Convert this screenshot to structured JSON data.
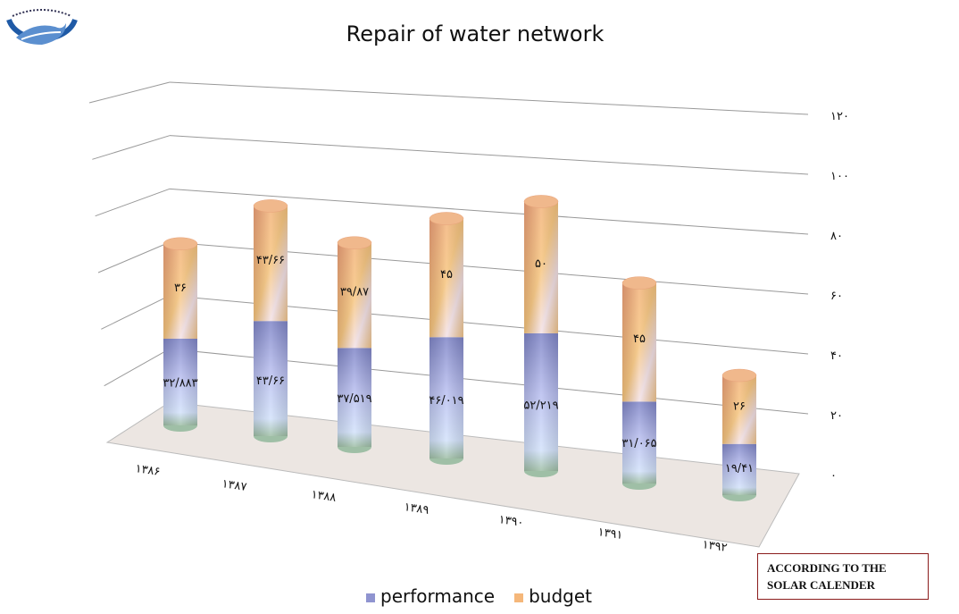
{
  "chart_data": {
    "type": "bar",
    "stacked": true,
    "style": "3d-cylinder",
    "title": "Repair of water network",
    "categories": [
      "۱۳۸۶",
      "۱۳۸۷",
      "۱۳۸۸",
      "۱۳۸۹",
      "۱۳۹۰",
      "۱۳۹۱",
      "۱۳۹۲"
    ],
    "series": [
      {
        "name": "performance",
        "color": "#8f94d0",
        "values": [
          32.883,
          43.66,
          37.519,
          46.019,
          52.219,
          31.065,
          19.41
        ],
        "labels": [
          "۳۲/۸۸۳",
          "۴۳/۶۶",
          "۳۷/۵۱۹",
          "۴۶/۰۱۹",
          "۵۲/۲۱۹",
          "۳۱/۰۶۵",
          "۱۹/۴۱"
        ]
      },
      {
        "name": "budget",
        "color": "#f5b77a",
        "values": [
          36,
          43.66,
          39.87,
          45,
          50,
          45,
          26
        ],
        "labels": [
          "۳۶",
          "۴۳/۶۶",
          "۳۹/۸۷",
          "۴۵",
          "۵۰",
          "۴۵",
          "۲۶"
        ]
      }
    ],
    "yticks": [
      "۰",
      "۲۰",
      "۴۰",
      "۶۰",
      "۸۰",
      "۱۰۰",
      "۱۲۰"
    ],
    "ytick_values": [
      0,
      20,
      40,
      60,
      80,
      100,
      120
    ],
    "ylim": [
      0,
      120
    ],
    "grid": true,
    "legend": "bottom"
  },
  "note": {
    "line1": "ACCORDING TO THE",
    "line2": "SOLAR CALENDER"
  }
}
